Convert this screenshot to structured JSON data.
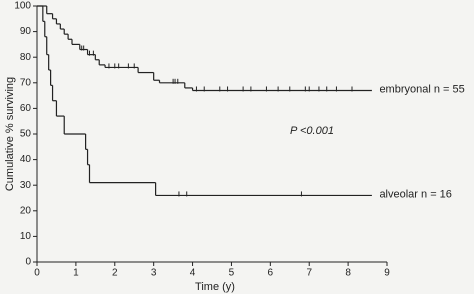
{
  "chart_data": {
    "type": "step",
    "xlabel": "Time (y)",
    "ylabel": "Cumulative % surviving",
    "xlim": [
      0,
      9
    ],
    "xticks": [
      0,
      1,
      2,
      3,
      4,
      5,
      6,
      7,
      8,
      9
    ],
    "ylim": [
      0,
      100
    ],
    "yticks": [
      0,
      10,
      20,
      30,
      40,
      50,
      60,
      70,
      80,
      90,
      100
    ],
    "annotations": [
      "P <0.001"
    ],
    "series": [
      {
        "name": "embryonal n = 55",
        "color": "#222222",
        "x": [
          0,
          0.25,
          0.4,
          0.5,
          0.6,
          0.7,
          0.8,
          0.9,
          1.1,
          1.3,
          1.5,
          1.6,
          1.75,
          2.6,
          3.0,
          3.15,
          3.8,
          4.0,
          8.6
        ],
        "values": [
          100,
          97,
          95,
          93,
          91,
          89,
          87,
          85,
          83,
          81,
          79,
          77,
          76,
          74,
          71,
          70,
          68,
          67,
          67
        ],
        "censored_x": [
          1.15,
          1.2,
          1.35,
          1.45,
          1.85,
          2.0,
          2.1,
          2.35,
          2.5,
          3.5,
          3.55,
          3.62,
          4.1,
          4.3,
          4.7,
          4.9,
          5.3,
          5.5,
          5.9,
          6.2,
          6.5,
          6.9,
          7.0,
          7.25,
          7.45,
          7.7,
          8.1
        ],
        "censored_y": [
          83,
          83,
          81,
          81,
          76,
          76,
          76,
          76,
          76,
          70,
          70,
          70,
          67,
          67,
          67,
          67,
          67,
          67,
          67,
          67,
          67,
          67,
          67,
          67,
          67,
          67,
          67
        ]
      },
      {
        "name": "alveolar n = 16",
        "color": "#222222",
        "x": [
          0,
          0.15,
          0.2,
          0.25,
          0.3,
          0.35,
          0.4,
          0.5,
          0.7,
          1.25,
          1.3,
          1.35,
          3.05,
          8.6
        ],
        "values": [
          100,
          94,
          88,
          81,
          75,
          69,
          63,
          57,
          50,
          44,
          38,
          31,
          26,
          26
        ],
        "censored_x": [
          3.65,
          3.85,
          6.8
        ],
        "censored_y": [
          26,
          26,
          26
        ]
      }
    ]
  }
}
